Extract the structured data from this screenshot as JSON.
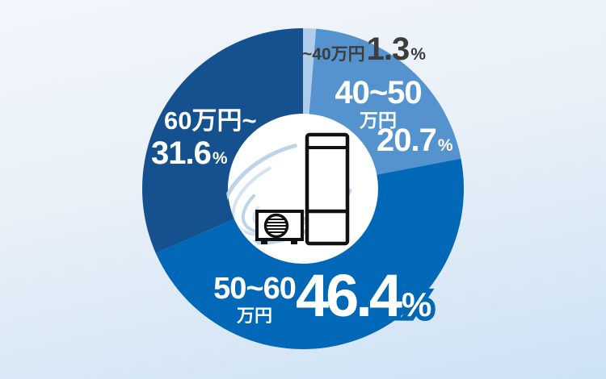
{
  "chart_data": {
    "type": "pie",
    "subtype": "donut",
    "categories": [
      "~40万円",
      "40~50万円",
      "50~60万円",
      "60万円~"
    ],
    "values": [
      1.3,
      20.7,
      46.4,
      31.6
    ],
    "unit": "%",
    "colors": [
      "#b0cde9",
      "#5493ce",
      "#0068b7",
      "#15518f"
    ],
    "start_angle_deg": 0,
    "direction": "clockwise",
    "legend_position": "none",
    "labels_on_slices": true,
    "donut_hole_color": "#ffffff"
  },
  "labels": {
    "under40": {
      "range": "~40万円"
    },
    "range_40_50": {
      "line1": "40~50",
      "line2": "万円"
    },
    "range_50_60": {
      "line1": "50~60",
      "line2": "万円"
    },
    "over60": {
      "range": "60万円~"
    }
  },
  "colors": {
    "background_top": "#f2f6fc",
    "background_bottom": "#cde2f5",
    "dark_label": "#3d3d3d",
    "white_label": "#ffffff",
    "value_outline": "#0068b7",
    "swirl_light": "#bdd3e9",
    "swirl_lighter": "#d4e2f1",
    "appliance_outline": "#111111"
  },
  "center_illustration": {
    "icons": [
      "swirl-icon",
      "water-heater-tank-icon",
      "heat-pump-outdoor-unit-icon"
    ]
  }
}
